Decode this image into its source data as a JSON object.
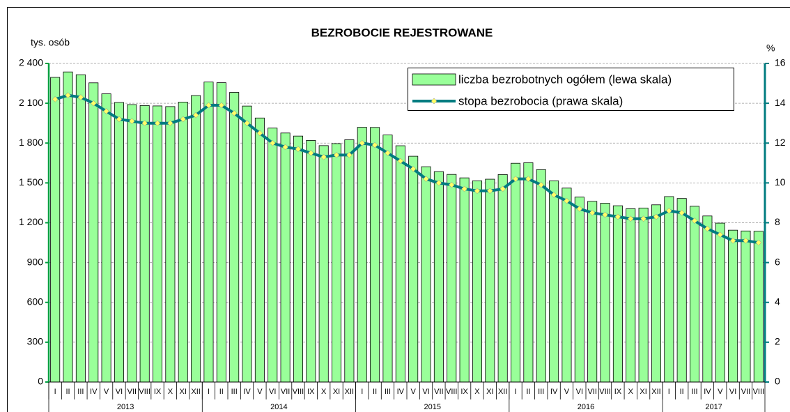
{
  "chart_data": {
    "type": "bar-line",
    "title": "BEZROBOCIE REJESTROWANE",
    "y_label": "tys. osób",
    "y2_label": "%",
    "groups": [
      {
        "label": "2013",
        "categories": [
          "I",
          "II",
          "III",
          "IV",
          "V",
          "VI",
          "VII",
          "VIII",
          "IX",
          "X",
          "XI",
          "XII"
        ]
      },
      {
        "label": "2014",
        "categories": [
          "I",
          "II",
          "III",
          "IV",
          "V",
          "VI",
          "VII",
          "VIII",
          "IX",
          "X",
          "XI",
          "XII"
        ]
      },
      {
        "label": "2015",
        "categories": [
          "I",
          "II",
          "III",
          "IV",
          "V",
          "VI",
          "VII",
          "VIII",
          "IX",
          "X",
          "XI",
          "XII"
        ]
      },
      {
        "label": "2016",
        "categories": [
          "I",
          "II",
          "III",
          "IV",
          "V",
          "VI",
          "VII",
          "VIII",
          "IX",
          "X",
          "XI",
          "XII"
        ]
      },
      {
        "label": "2017",
        "categories": [
          "I",
          "II",
          "III",
          "IV",
          "V",
          "VI",
          "VII",
          "VIII"
        ]
      }
    ],
    "series": [
      {
        "name": "liczba bezrobotnych ogółem (lewa skala)",
        "type": "bar",
        "color": "#99ff99",
        "values": [
          2295,
          2336,
          2315,
          2254,
          2171,
          2106,
          2090,
          2083,
          2080,
          2075,
          2109,
          2158,
          2260,
          2255,
          2182,
          2079,
          1989,
          1913,
          1876,
          1853,
          1820,
          1781,
          1796,
          1825,
          1919,
          1918,
          1861,
          1780,
          1701,
          1622,
          1585,
          1564,
          1538,
          1516,
          1528,
          1563,
          1648,
          1652,
          1600,
          1516,
          1461,
          1393,
          1361,
          1347,
          1328,
          1306,
          1311,
          1335,
          1397,
          1383,
          1324,
          1251,
          1197,
          1144,
          1138,
          1136
        ]
      },
      {
        "name": "stopa bezrobocia (prawa skala)",
        "type": "line",
        "axis": "y2",
        "color": "#007c80",
        "marker_color": "#ffff66",
        "values": [
          14.2,
          14.4,
          14.3,
          14.0,
          13.6,
          13.2,
          13.1,
          13.0,
          13.0,
          13.0,
          13.2,
          13.4,
          13.9,
          13.9,
          13.5,
          13.0,
          12.5,
          12.0,
          11.8,
          11.7,
          11.5,
          11.3,
          11.4,
          11.4,
          12.0,
          11.9,
          11.5,
          11.1,
          10.7,
          10.2,
          10.0,
          9.9,
          9.7,
          9.6,
          9.6,
          9.7,
          10.2,
          10.2,
          9.9,
          9.4,
          9.1,
          8.7,
          8.5,
          8.4,
          8.3,
          8.2,
          8.2,
          8.3,
          8.6,
          8.5,
          8.1,
          7.7,
          7.4,
          7.1,
          7.1,
          7.0
        ]
      }
    ],
    "ylim": [
      0,
      2400
    ],
    "yticks": [
      0,
      300,
      600,
      900,
      {
        "value": 1200,
        "label": "1 200"
      },
      {
        "value": 1500,
        "label": "1 500"
      },
      {
        "value": 1800,
        "label": "1 800"
      },
      {
        "value": 2100,
        "label": "2 100"
      },
      {
        "value": 2400,
        "label": "2 400"
      }
    ],
    "y2lim": [
      0,
      16
    ],
    "y2ticks": [
      0,
      2,
      4,
      6,
      8,
      10,
      12,
      14,
      16
    ],
    "grid": true,
    "legend": "top-right"
  }
}
